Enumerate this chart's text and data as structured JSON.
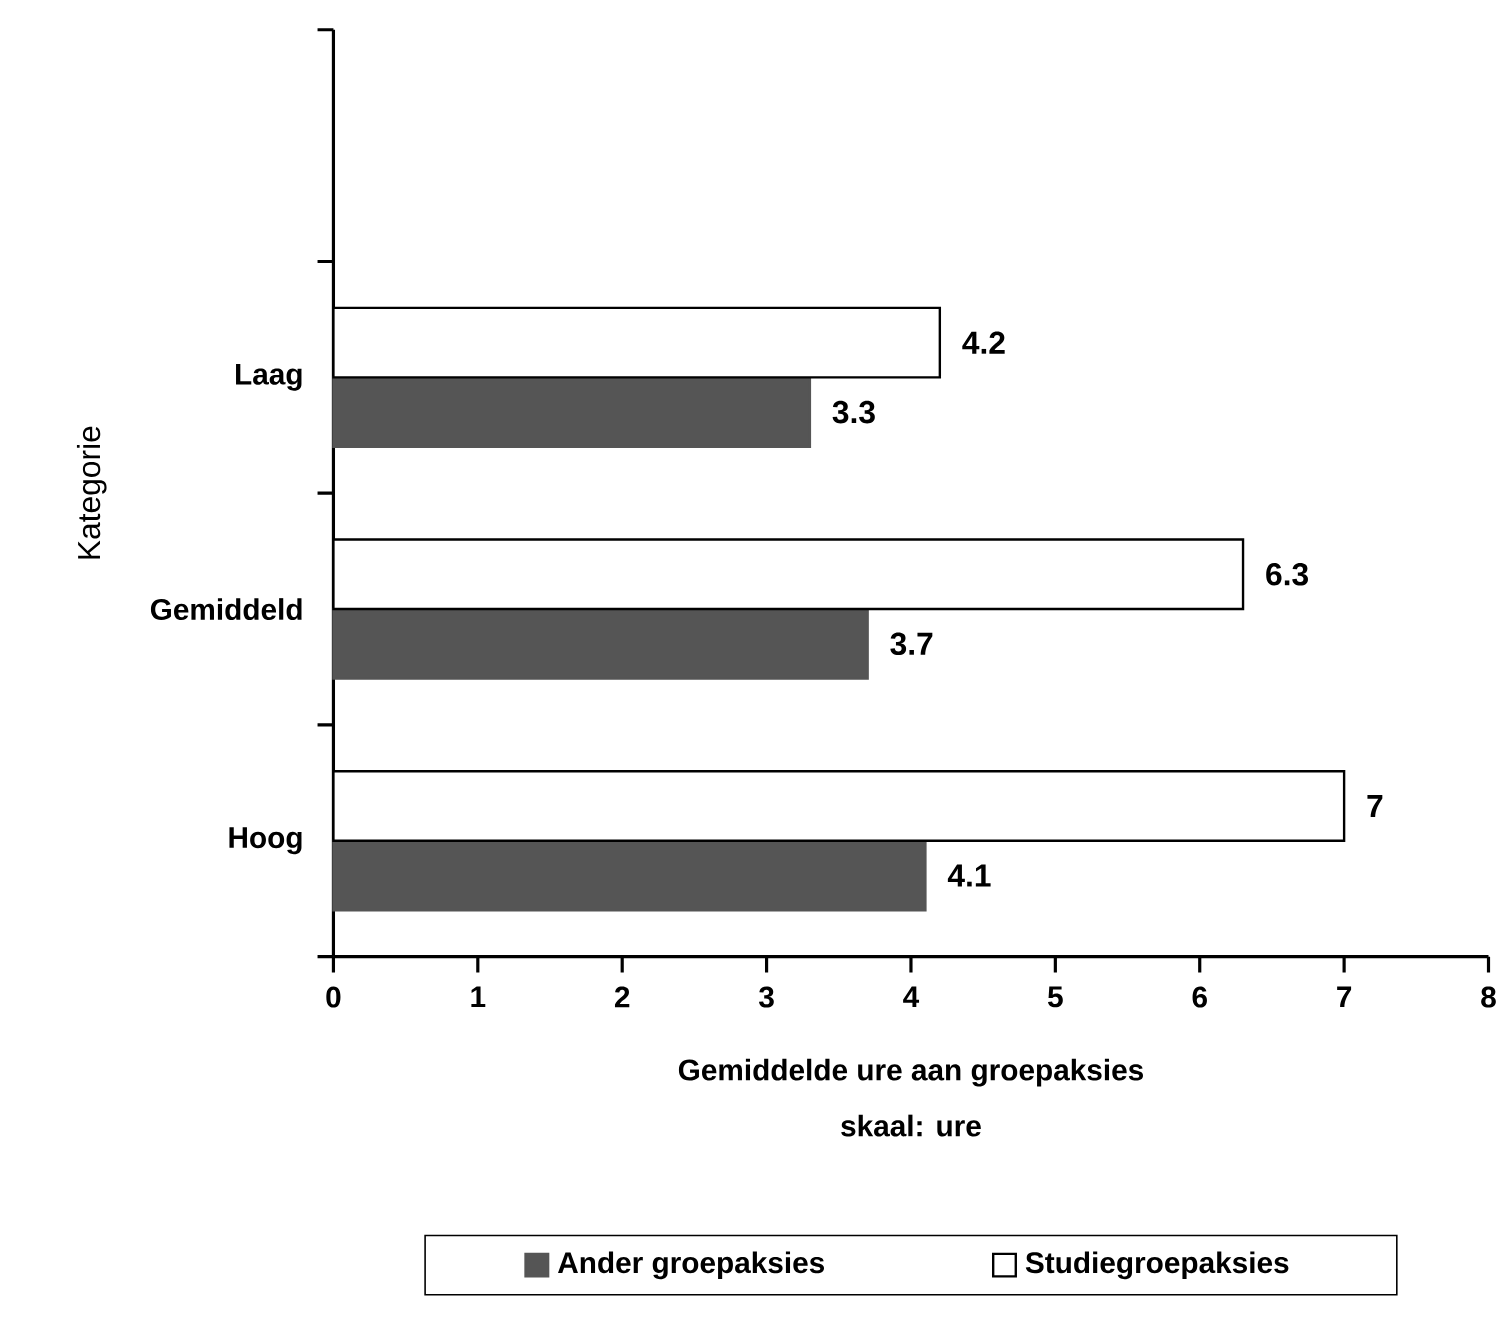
{
  "chart_data": {
    "type": "bar",
    "orientation": "horizontal",
    "categories": [
      null,
      "Laag",
      "Gemiddeld",
      "Hoog"
    ],
    "xlabel": "Gemiddelde ure aan groepaksies",
    "ylabel": "Kategorie",
    "annotations": [
      "skaal: ure"
    ],
    "xlim": [
      0,
      8
    ],
    "xticks": [
      0,
      1,
      2,
      3,
      4,
      5,
      6,
      7,
      8
    ],
    "series": [
      {
        "name": "Ander groepaksies",
        "color": "#555555",
        "values": [
          null,
          3.3,
          3.7,
          4.1
        ]
      },
      {
        "name": "Studiegroepaksies",
        "color": "#ffffff",
        "values": [
          null,
          4.2,
          6.3,
          7
        ]
      }
    ],
    "data_labels": true,
    "legend": "bottom"
  }
}
